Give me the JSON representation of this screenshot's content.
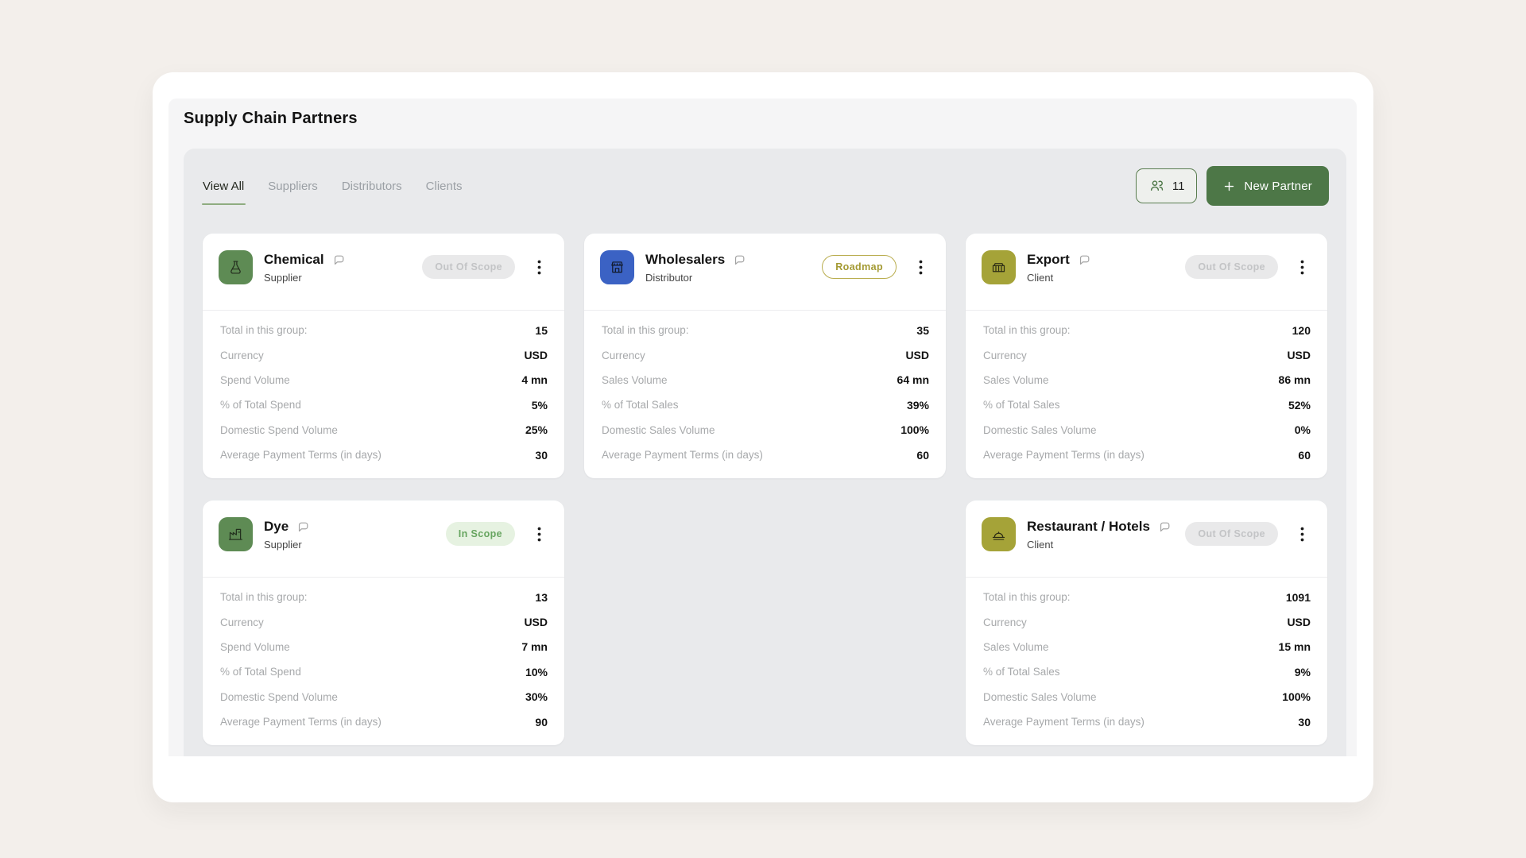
{
  "header": {
    "title": "Supply Chain Partners"
  },
  "tabs": [
    {
      "label": "View All",
      "active": true
    },
    {
      "label": "Suppliers",
      "active": false
    },
    {
      "label": "Distributors",
      "active": false
    },
    {
      "label": "Clients",
      "active": false
    }
  ],
  "toolbar": {
    "partner_count": "11",
    "new_partner_label": "New Partner"
  },
  "colors": {
    "accent_green": "#4d7747",
    "tab_underline": "#8fac80",
    "icon_green": "#5e8b54",
    "icon_blue": "#3b62c4",
    "icon_olive": "#a5a338",
    "status_out_bg": "#e9e9ea",
    "status_out_text": "#c3c4c6",
    "status_roadmap_border": "#b9ad4e",
    "status_roadmap_text": "#a49a33",
    "status_in_bg": "#e6f2e1",
    "status_in_text": "#67a560"
  },
  "cards": [
    {
      "name": "Chemical",
      "type": "Supplier",
      "status": "Out Of Scope",
      "status_kind": "out",
      "icon": "chemical-flask-icon",
      "icon_bg": "#5e8b54",
      "row": 1,
      "col": 1,
      "stats": [
        [
          "Total in this group:",
          "15"
        ],
        [
          "Currency",
          "USD"
        ],
        [
          "Spend Volume",
          "4 mn"
        ],
        [
          "% of Total Spend",
          "5%"
        ],
        [
          "Domestic Spend Volume",
          "25%"
        ],
        [
          "Average Payment Terms (in days)",
          "30"
        ]
      ]
    },
    {
      "name": "Wholesalers",
      "type": "Distributor",
      "status": "Roadmap",
      "status_kind": "roadmap",
      "icon": "storefront-icon",
      "icon_bg": "#3b62c4",
      "row": 1,
      "col": 2,
      "stats": [
        [
          "Total in this group:",
          "35"
        ],
        [
          "Currency",
          "USD"
        ],
        [
          "Sales Volume",
          "64 mn"
        ],
        [
          "% of Total Sales",
          "39%"
        ],
        [
          "Domestic Sales Volume",
          "100%"
        ],
        [
          "Average Payment Terms (in days)",
          "60"
        ]
      ]
    },
    {
      "name": "Export",
      "type": "Client",
      "status": "Out Of Scope",
      "status_kind": "out",
      "icon": "cargo-container-icon",
      "icon_bg": "#a5a338",
      "row": 1,
      "col": 3,
      "stats": [
        [
          "Total in this group:",
          "120"
        ],
        [
          "Currency",
          "USD"
        ],
        [
          "Sales Volume",
          "86 mn"
        ],
        [
          "% of Total Sales",
          "52%"
        ],
        [
          "Domestic Sales Volume",
          "0%"
        ],
        [
          "Average Payment Terms (in days)",
          "60"
        ]
      ]
    },
    {
      "name": "Dye",
      "type": "Supplier",
      "status": "In Scope",
      "status_kind": "in",
      "icon": "factory-icon",
      "icon_bg": "#5e8b54",
      "row": 2,
      "col": 1,
      "stats": [
        [
          "Total in this group:",
          "13"
        ],
        [
          "Currency",
          "USD"
        ],
        [
          "Spend Volume",
          "7 mn"
        ],
        [
          "% of Total Spend",
          "10%"
        ],
        [
          "Domestic Spend Volume",
          "30%"
        ],
        [
          "Average Payment Terms (in days)",
          "90"
        ]
      ]
    },
    {
      "name": "Restaurant / Hotels",
      "type": "Client",
      "status": "Out Of Scope",
      "status_kind": "out",
      "icon": "restaurant-icon",
      "icon_bg": "#a5a338",
      "row": 2,
      "col": 3,
      "stats": [
        [
          "Total in this group:",
          "1091"
        ],
        [
          "Currency",
          "USD"
        ],
        [
          "Sales Volume",
          "15 mn"
        ],
        [
          "% of Total Sales",
          "9%"
        ],
        [
          "Domestic Sales Volume",
          "100%"
        ],
        [
          "Average Payment Terms (in days)",
          "30"
        ]
      ]
    }
  ]
}
